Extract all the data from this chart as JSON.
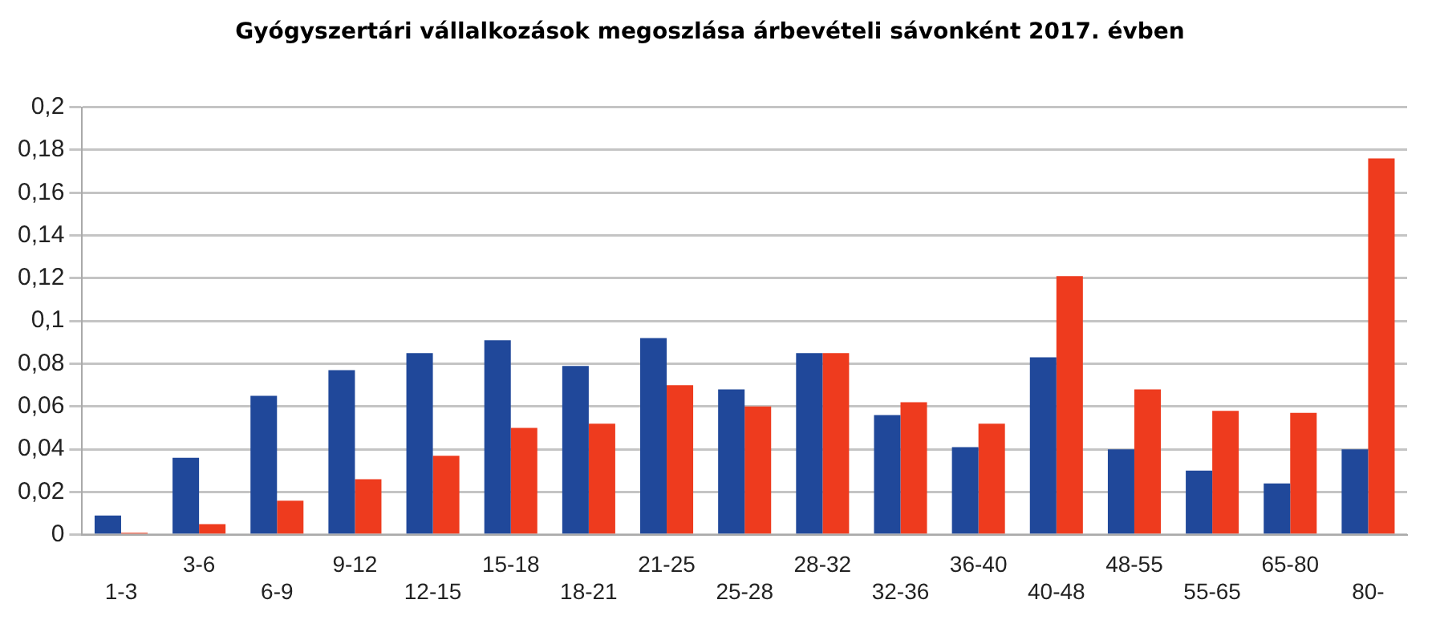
{
  "chart_data": {
    "type": "bar",
    "title": "Gyógyszertári vállalkozások megoszlása árbevételi sávonként 2017. évben",
    "categories": [
      "1-3",
      "3-6",
      "6-9",
      "9-12",
      "12-15",
      "15-18",
      "18-21",
      "21-25",
      "25-28",
      "28-32",
      "32-36",
      "36-40",
      "40-48",
      "48-55",
      "55-65",
      "65-80",
      "80-"
    ],
    "series": [
      {
        "color": "#20489a",
        "values": [
          0.009,
          0.036,
          0.065,
          0.077,
          0.085,
          0.091,
          0.079,
          0.092,
          0.068,
          0.085,
          0.056,
          0.041,
          0.083,
          0.04,
          0.03,
          0.024,
          0.04
        ]
      },
      {
        "color": "#ee3b1e",
        "values": [
          0.001,
          0.005,
          0.016,
          0.026,
          0.037,
          0.05,
          0.052,
          0.07,
          0.06,
          0.085,
          0.062,
          0.052,
          0.121,
          0.068,
          0.058,
          0.057,
          0.176
        ]
      }
    ],
    "ylim": [
      0,
      0.2
    ],
    "yticks": [
      {
        "value": 0,
        "label": "0"
      },
      {
        "value": 0.02,
        "label": "0,02"
      },
      {
        "value": 0.04,
        "label": "0,04"
      },
      {
        "value": 0.06,
        "label": "0,06"
      },
      {
        "value": 0.08,
        "label": "0,08"
      },
      {
        "value": 0.1,
        "label": "0,1"
      },
      {
        "value": 0.12,
        "label": "0,12"
      },
      {
        "value": 0.14,
        "label": "0,14"
      },
      {
        "value": 0.16,
        "label": "0,16"
      },
      {
        "value": 0.18,
        "label": "0,18"
      },
      {
        "value": 0.2,
        "label": "0,2"
      }
    ],
    "grid": "y"
  }
}
